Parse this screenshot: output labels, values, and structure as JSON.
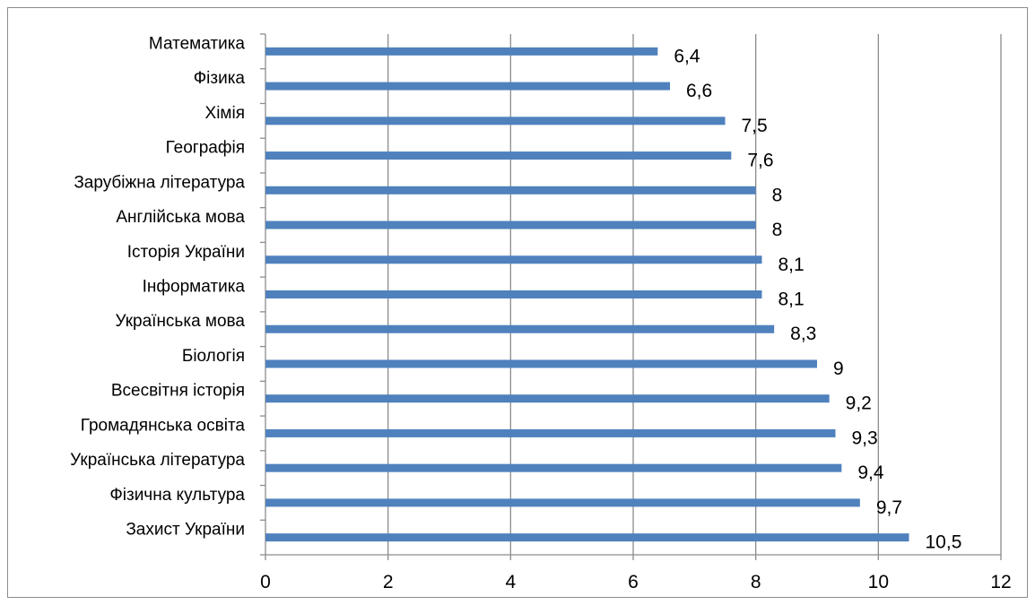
{
  "chart_data": {
    "type": "bar",
    "orientation": "horizontal",
    "categories": [
      "Математика",
      "Фізика",
      "Хімія",
      "Географія",
      "Зарубіжна література",
      "Англійська мова",
      "Історія України",
      "Інформатика",
      "Українська мова",
      "Біологія",
      "Всесвітня історія",
      "Громадянська освіта",
      "Українська література",
      "Фізична культура",
      "Захист України"
    ],
    "values": [
      6.4,
      6.6,
      7.5,
      7.6,
      8,
      8,
      8.1,
      8.1,
      8.3,
      9,
      9.2,
      9.3,
      9.4,
      9.7,
      10.5
    ],
    "value_labels": [
      "6,4",
      "6,6",
      "7,5",
      "7,6",
      "8",
      "8",
      "8,1",
      "8,1",
      "8,3",
      "9",
      "9,2",
      "9,3",
      "9,4",
      "9,7",
      "10,5"
    ],
    "title": "",
    "xlabel": "",
    "ylabel": "",
    "xlim": [
      0,
      12
    ],
    "xticks": [
      0,
      2,
      4,
      6,
      8,
      10,
      12
    ],
    "xtick_labels": [
      "0",
      "2",
      "4",
      "6",
      "8",
      "10",
      "12"
    ],
    "grid": "vertical",
    "legend": "none",
    "colors": {
      "bar": "#4f81bd",
      "grid": "#8c8c8c",
      "axis": "#8c8c8c",
      "text": "#000000"
    }
  }
}
